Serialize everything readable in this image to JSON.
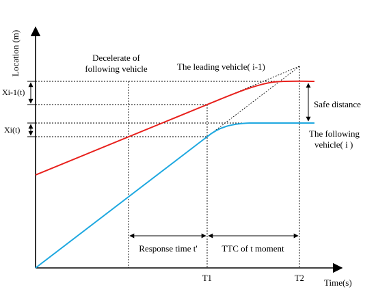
{
  "axes": {
    "y_label": "Location (m)",
    "x_label": "Time(s)"
  },
  "ticks": {
    "t1": "T1",
    "t2": "T2"
  },
  "labels": {
    "decelerate_line1": "Decelerate of",
    "decelerate_line2": "following vehicle",
    "leading_vehicle": "The leading vehicle( i-1)",
    "safe_distance": "Safe distance",
    "following_line1": "The following",
    "following_line2": "vehicle( i )",
    "response_time": "Response time  t'",
    "ttc": "TTC of t moment",
    "x_leading": "Xi-1(t)",
    "x_following": "Xi(t)"
  },
  "colors": {
    "leading_curve": "#e8201c",
    "following_curve": "#1ea8e0",
    "axis": "#000000"
  }
}
